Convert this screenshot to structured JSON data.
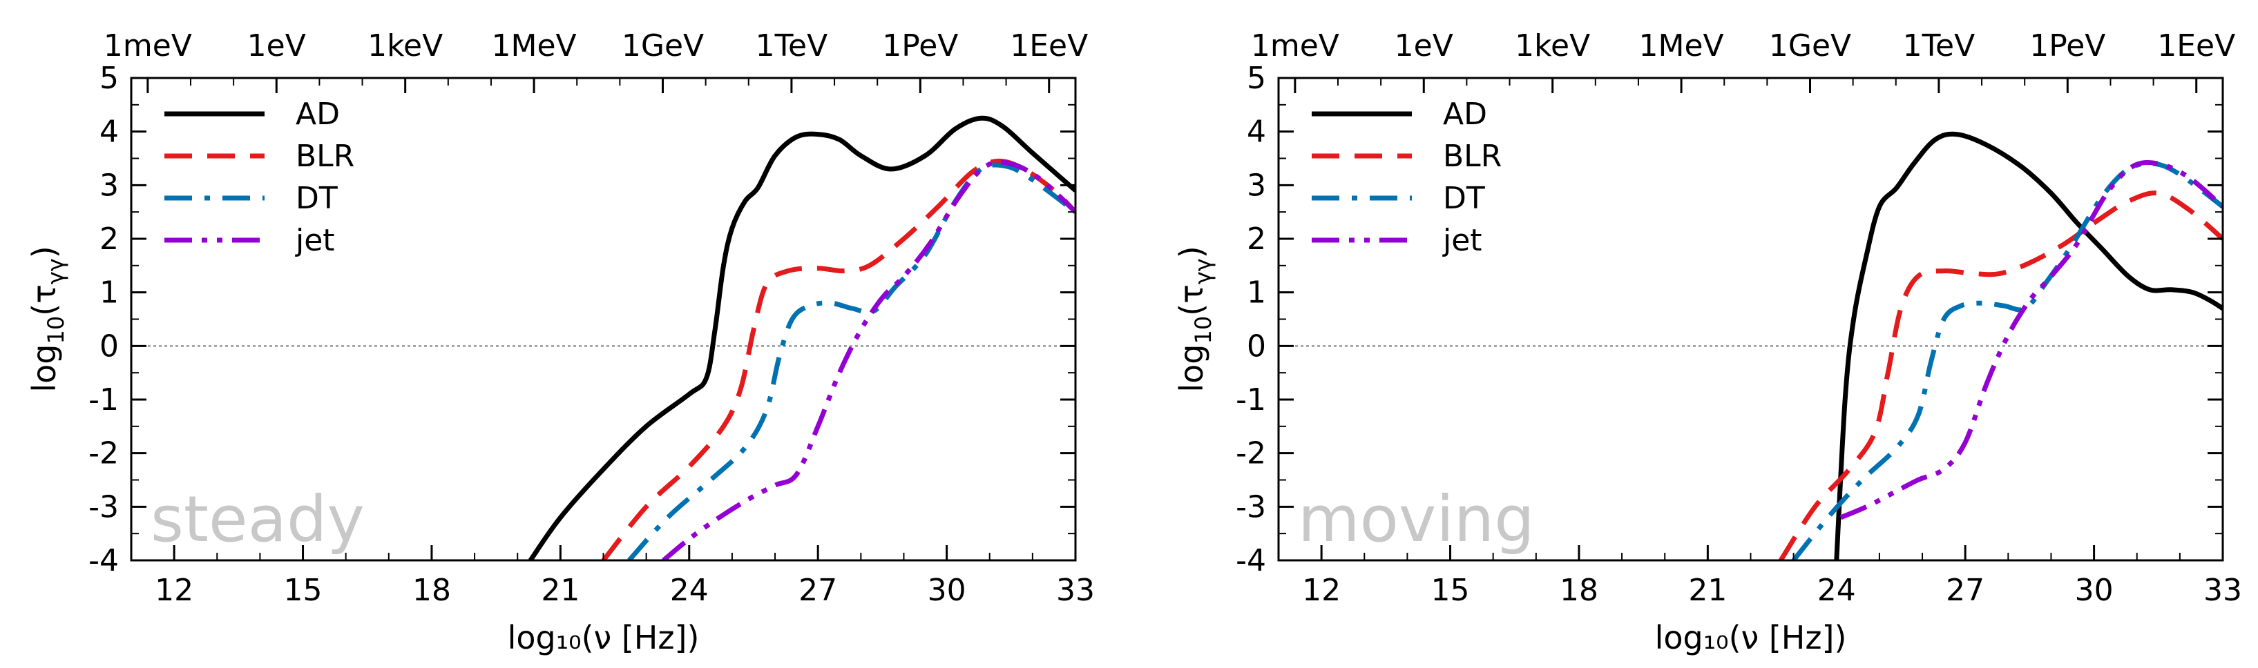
{
  "chart_data": [
    {
      "type": "line",
      "panel": "steady",
      "xlabel": "log₁₀(ν [Hz])",
      "ylabel_base": "log",
      "ylabel_sub": "10",
      "ylabel_open": "(τ",
      "ylabel_subsub": "γγ",
      "ylabel_close": ")",
      "xlim": [
        11,
        33
      ],
      "ylim": [
        -4,
        5
      ],
      "x_ticks": [
        "12",
        "15",
        "18",
        "21",
        "24",
        "27",
        "30",
        "33"
      ],
      "y_ticks": [
        "-4",
        "-3",
        "-2",
        "-1",
        "0",
        "1",
        "2",
        "3",
        "4",
        "5"
      ],
      "top_axis_labels": [
        "1meV",
        "1eV",
        "1keV",
        "1MeV",
        "1GeV",
        "1TeV",
        "1PeV",
        "1EeV"
      ],
      "watermark": "steady",
      "legend_position": "top-left",
      "series": [
        {
          "name": "AD",
          "color": "#000000",
          "style": "solid",
          "x": [
            20.3,
            21.0,
            22.0,
            23.0,
            24.0,
            24.4,
            24.6,
            24.8,
            25.0,
            25.3,
            25.6,
            26.0,
            26.5,
            27.0,
            27.5,
            28.0,
            28.7,
            29.5,
            30.2,
            30.8,
            31.3,
            32.0,
            33.0
          ],
          "y": [
            -4.0,
            -3.2,
            -2.3,
            -1.5,
            -0.9,
            -0.6,
            0.3,
            1.5,
            2.2,
            2.7,
            2.95,
            3.55,
            3.9,
            3.95,
            3.85,
            3.55,
            3.3,
            3.55,
            4.05,
            4.25,
            4.1,
            3.6,
            2.9
          ]
        },
        {
          "name": "BLR",
          "color": "#e41a1c",
          "style": "dashed",
          "x": [
            22.0,
            23.0,
            24.0,
            24.8,
            25.2,
            25.5,
            25.8,
            26.3,
            27.0,
            27.6,
            28.2,
            29.0,
            29.8,
            30.6,
            31.2,
            31.8,
            32.5,
            33.0
          ],
          "y": [
            -4.0,
            -3.0,
            -2.25,
            -1.5,
            -0.8,
            0.3,
            1.15,
            1.4,
            1.45,
            1.4,
            1.5,
            2.0,
            2.6,
            3.25,
            3.45,
            3.3,
            2.9,
            2.5
          ]
        },
        {
          "name": "DT",
          "color": "#0072b2",
          "style": "dashdot",
          "x": [
            22.6,
            23.5,
            24.5,
            25.3,
            25.8,
            26.1,
            26.4,
            26.8,
            27.3,
            27.8,
            28.3,
            28.8,
            29.5,
            30.2,
            30.8,
            31.4,
            32.0,
            33.0
          ],
          "y": [
            -4.0,
            -3.2,
            -2.5,
            -1.9,
            -1.2,
            -0.2,
            0.5,
            0.75,
            0.8,
            0.7,
            0.65,
            1.1,
            1.7,
            2.7,
            3.3,
            3.35,
            3.1,
            2.5
          ]
        },
        {
          "name": "jet",
          "color": "#9400d3",
          "style": "dashdotdot",
          "x": [
            23.4,
            24.0,
            24.7,
            25.4,
            26.0,
            26.5,
            27.0,
            27.5,
            28.0,
            28.5,
            29.0,
            29.6,
            30.3,
            30.9,
            31.5,
            32.2,
            33.0
          ],
          "y": [
            -4.0,
            -3.6,
            -3.2,
            -2.85,
            -2.6,
            -2.4,
            -1.5,
            -0.5,
            0.3,
            0.9,
            1.3,
            1.9,
            2.8,
            3.35,
            3.4,
            3.1,
            2.5
          ]
        }
      ]
    },
    {
      "type": "line",
      "panel": "moving",
      "xlabel": "log₁₀(ν [Hz])",
      "ylabel_base": "log",
      "ylabel_sub": "10",
      "ylabel_open": "(τ",
      "ylabel_subsub": "γγ",
      "ylabel_close": ")",
      "xlim": [
        11,
        33
      ],
      "ylim": [
        -4,
        5
      ],
      "x_ticks": [
        "12",
        "15",
        "18",
        "21",
        "24",
        "27",
        "30",
        "33"
      ],
      "y_ticks": [
        "-4",
        "-3",
        "-2",
        "-1",
        "0",
        "1",
        "2",
        "3",
        "4",
        "5"
      ],
      "top_axis_labels": [
        "1meV",
        "1eV",
        "1keV",
        "1MeV",
        "1GeV",
        "1TeV",
        "1PeV",
        "1EeV"
      ],
      "watermark": "moving",
      "legend_position": "top-left",
      "series": [
        {
          "name": "AD",
          "color": "#000000",
          "style": "solid",
          "x": [
            24.0,
            24.2,
            24.4,
            24.7,
            25.0,
            25.4,
            25.8,
            26.3,
            26.8,
            27.5,
            28.3,
            29.0,
            29.6,
            30.2,
            30.8,
            31.3,
            31.8,
            32.3,
            32.7,
            33.0
          ],
          "y": [
            -4.0,
            -1.0,
            0.5,
            1.7,
            2.6,
            2.95,
            3.4,
            3.85,
            3.95,
            3.75,
            3.35,
            2.85,
            2.3,
            1.8,
            1.3,
            1.05,
            1.05,
            1.0,
            0.85,
            0.7
          ]
        },
        {
          "name": "BLR",
          "color": "#e41a1c",
          "style": "dashed",
          "x": [
            22.7,
            23.5,
            24.3,
            24.9,
            25.2,
            25.5,
            25.9,
            26.5,
            27.2,
            27.8,
            28.5,
            29.3,
            30.1,
            30.8,
            31.5,
            32.2,
            33.0
          ],
          "y": [
            -4.0,
            -3.0,
            -2.3,
            -1.6,
            -0.5,
            0.7,
            1.3,
            1.4,
            1.35,
            1.35,
            1.55,
            1.9,
            2.35,
            2.7,
            2.85,
            2.55,
            2.0
          ]
        },
        {
          "name": "DT",
          "color": "#0072b2",
          "style": "dashdot",
          "x": [
            23.0,
            23.8,
            24.6,
            25.4,
            25.9,
            26.2,
            26.5,
            26.9,
            27.4,
            27.9,
            28.4,
            28.9,
            29.5,
            30.2,
            30.8,
            31.4,
            32.0,
            33.0
          ],
          "y": [
            -4.0,
            -3.2,
            -2.5,
            -1.9,
            -1.3,
            -0.3,
            0.5,
            0.75,
            0.8,
            0.75,
            0.7,
            1.2,
            1.9,
            2.8,
            3.3,
            3.4,
            3.2,
            2.6
          ]
        },
        {
          "name": "jet",
          "color": "#9400d3",
          "style": "dashdotdot",
          "x": [
            24.1,
            24.7,
            25.3,
            25.9,
            26.5,
            27.0,
            27.5,
            28.0,
            28.5,
            29.0,
            29.6,
            30.3,
            30.9,
            31.5,
            32.2,
            33.0
          ],
          "y": [
            -3.2,
            -3.0,
            -2.75,
            -2.5,
            -2.3,
            -1.8,
            -0.7,
            0.2,
            0.85,
            1.3,
            1.9,
            2.85,
            3.35,
            3.4,
            3.15,
            2.6
          ]
        }
      ]
    }
  ]
}
